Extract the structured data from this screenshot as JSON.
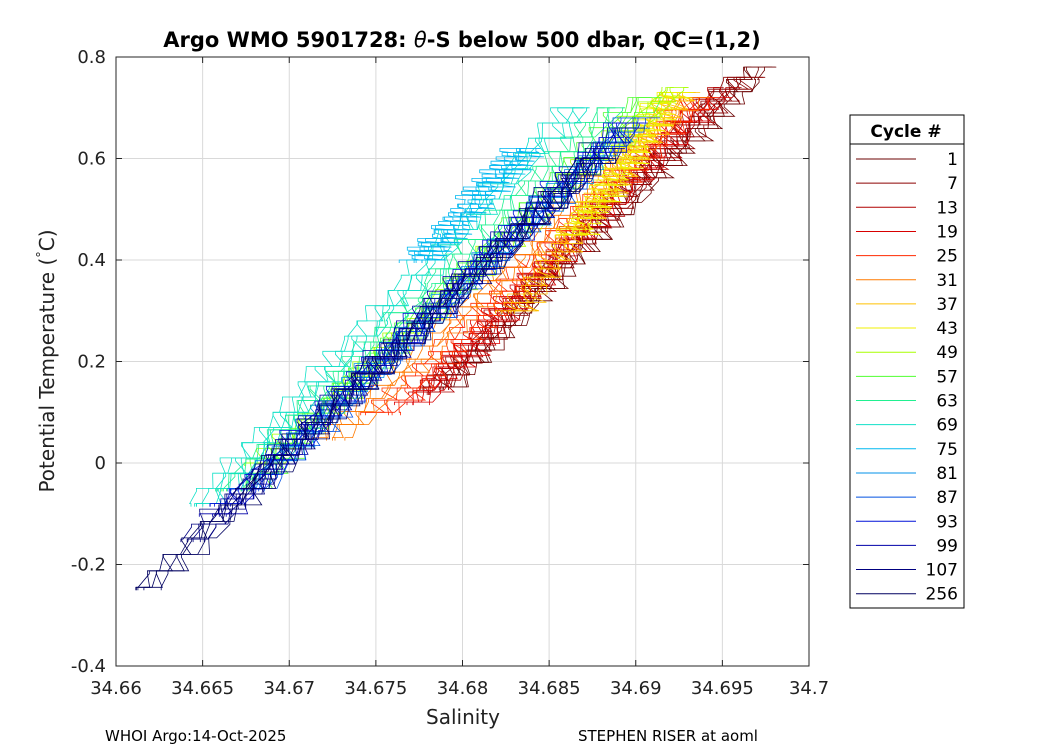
{
  "chart_data": {
    "type": "line",
    "title_parts": {
      "prefix": "Argo WMO 5901728: ",
      "theta": "θ",
      "suffix": "-S below 500 dbar,  QC=(1,2)"
    },
    "xlabel": "Salinity",
    "ylabel_prefix": "Potential Temperature (",
    "ylabel_degree": "°",
    "ylabel_suffix": "C)",
    "xlim": [
      34.66,
      34.7
    ],
    "ylim": [
      -0.4,
      0.8
    ],
    "x_ticks": [
      {
        "value": 34.66,
        "label": "34.66"
      },
      {
        "value": 34.665,
        "label": "34.665"
      },
      {
        "value": 34.67,
        "label": "34.67"
      },
      {
        "value": 34.675,
        "label": "34.675"
      },
      {
        "value": 34.68,
        "label": "34.68"
      },
      {
        "value": 34.685,
        "label": "34.685"
      },
      {
        "value": 34.69,
        "label": "34.69"
      },
      {
        "value": 34.695,
        "label": "34.695"
      },
      {
        "value": 34.7,
        "label": "34.7"
      }
    ],
    "y_ticks": [
      {
        "value": -0.4,
        "label": "-0.4"
      },
      {
        "value": -0.2,
        "label": "-0.2"
      },
      {
        "value": 0,
        "label": "0"
      },
      {
        "value": 0.2,
        "label": "0.2"
      },
      {
        "value": 0.4,
        "label": "0.4"
      },
      {
        "value": 0.6,
        "label": "0.6"
      },
      {
        "value": 0.8,
        "label": "0.8"
      }
    ],
    "grid": true,
    "legend": {
      "title": "Cycle #",
      "placement": "right"
    },
    "series": [
      {
        "name": "1",
        "color": "#6b0000",
        "theta_range": [
          0.15,
          0.78
        ],
        "s_at_top": 34.6975,
        "s_at_bottom": 34.6795
      },
      {
        "name": "7",
        "color": "#8c0000",
        "theta_range": [
          0.15,
          0.76
        ],
        "s_at_top": 34.6965,
        "s_at_bottom": 34.679
      },
      {
        "name": "13",
        "color": "#b00000",
        "theta_range": [
          0.14,
          0.74
        ],
        "s_at_top": 34.6955,
        "s_at_bottom": 34.6785
      },
      {
        "name": "19",
        "color": "#d80000",
        "theta_range": [
          0.12,
          0.72
        ],
        "s_at_top": 34.6945,
        "s_at_bottom": 34.6778
      },
      {
        "name": "25",
        "color": "#ff2a00",
        "theta_range": [
          0.1,
          0.72
        ],
        "s_at_top": 34.694,
        "s_at_bottom": 34.676
      },
      {
        "name": "31",
        "color": "#ff7a00",
        "theta_range": [
          0.05,
          0.72
        ],
        "s_at_top": 34.6935,
        "s_at_bottom": 34.673
      },
      {
        "name": "37",
        "color": "#ffc000",
        "theta_range": [
          0.3,
          0.73
        ],
        "s_at_top": 34.693,
        "s_at_bottom": 34.6835
      },
      {
        "name": "43",
        "color": "#f0f000",
        "theta_range": [
          0.45,
          0.73
        ],
        "s_at_top": 34.6925,
        "s_at_bottom": 34.687
      },
      {
        "name": "49",
        "color": "#a8ff00",
        "theta_range": [
          0.0,
          0.74
        ],
        "s_at_top": 34.6925,
        "s_at_bottom": 34.669
      },
      {
        "name": "57",
        "color": "#50ff30",
        "theta_range": [
          -0.05,
          0.72
        ],
        "s_at_top": 34.691,
        "s_at_bottom": 34.668
      },
      {
        "name": "63",
        "color": "#20f090",
        "theta_range": [
          -0.05,
          0.7
        ],
        "s_at_top": 34.689,
        "s_at_bottom": 34.667
      },
      {
        "name": "69",
        "color": "#10e0c8",
        "theta_range": [
          -0.08,
          0.7
        ],
        "s_at_top": 34.687,
        "s_at_bottom": 34.6655
      },
      {
        "name": "75",
        "color": "#00b8f0",
        "theta_range": [
          0.4,
          0.62
        ],
        "s_at_top": 34.684,
        "s_at_bottom": 34.678
      },
      {
        "name": "81",
        "color": "#0090e8",
        "theta_range": [
          -0.05,
          0.66
        ],
        "s_at_top": 34.69,
        "s_at_bottom": 34.668
      },
      {
        "name": "87",
        "color": "#0050e0",
        "theta_range": [
          -0.05,
          0.68
        ],
        "s_at_top": 34.6905,
        "s_at_bottom": 34.6685
      },
      {
        "name": "93",
        "color": "#0010d8",
        "theta_range": [
          -0.08,
          0.67
        ],
        "s_at_top": 34.69,
        "s_at_bottom": 34.667
      },
      {
        "name": "99",
        "color": "#0000a8",
        "theta_range": [
          -0.1,
          0.66
        ],
        "s_at_top": 34.6895,
        "s_at_bottom": 34.6665
      },
      {
        "name": "107",
        "color": "#000080",
        "theta_range": [
          -0.15,
          0.62
        ],
        "s_at_top": 34.689,
        "s_at_bottom": 34.665
      },
      {
        "name": "256",
        "color": "#000060",
        "theta_range": [
          -0.245,
          0.6
        ],
        "s_at_top": 34.688,
        "s_at_bottom": 34.6622
      }
    ]
  },
  "footer": {
    "left": "WHOI Argo:14-Oct-2025",
    "right": "STEPHEN RISER at aoml"
  }
}
